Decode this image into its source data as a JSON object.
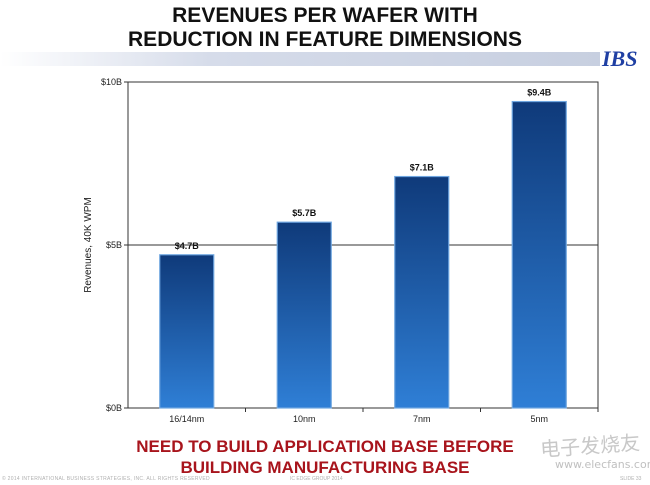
{
  "slide": {
    "title_line1": "REVENUES PER WAFER WITH",
    "title_line2": "REDUCTION IN FEATURE DIMENSIONS",
    "logo": "IBS",
    "note_line1": "NEED TO BUILD APPLICATION BASE BEFORE",
    "note_line2": "BUILDING MANUFACTURING BASE",
    "watermark": "电子发烧友",
    "watermark_url": "www.elecfans.com",
    "footer_left": "© 2014 INTERNATIONAL BUSINESS STRATEGIES, INC. ALL RIGHTS RESERVED",
    "footer_mid": "IC EDGE GROUP 2014",
    "footer_right": "SLIDE 33"
  },
  "colors": {
    "bar_top": "#0f3a7a",
    "bar_bottom": "#2f7fd6",
    "title": "#111111",
    "note": "#a8141c",
    "logo": "#1f3fa3"
  },
  "chart_data": {
    "type": "bar",
    "title": "REVENUES PER WAFER WITH REDUCTION IN FEATURE DIMENSIONS",
    "xlabel": "",
    "ylabel": "Revenues, 40K WPM",
    "categories": [
      "16/14nm",
      "10nm",
      "7nm",
      "5nm"
    ],
    "values": [
      4.7,
      5.7,
      7.1,
      9.4
    ],
    "data_labels": [
      "$4.7B",
      "$5.7B",
      "$7.1B",
      "$9.4B"
    ],
    "ylim": [
      0,
      10
    ],
    "yticks": [
      0,
      5,
      10
    ],
    "ytick_labels": [
      "$0B",
      "$5B",
      "$10B"
    ],
    "grid": true,
    "legend": "none"
  }
}
